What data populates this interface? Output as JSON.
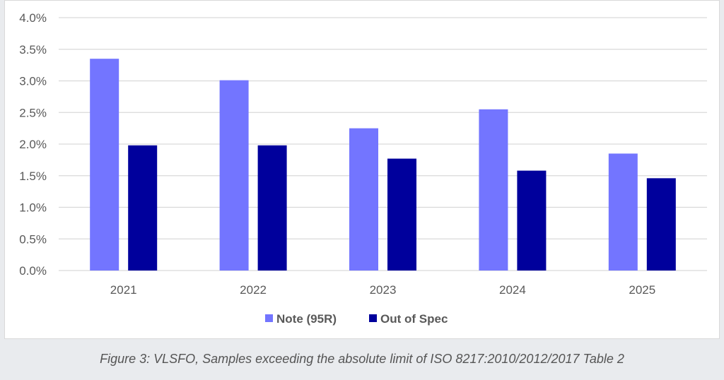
{
  "chart_data": {
    "type": "bar",
    "title": "",
    "xlabel": "",
    "ylabel": "",
    "categories": [
      "2021",
      "2022",
      "2023",
      "2024",
      "2025"
    ],
    "series": [
      {
        "name": "Note (95R)",
        "color": "#7375ff",
        "values": [
          3.35,
          3.01,
          2.25,
          2.55,
          1.85
        ]
      },
      {
        "name": "Out of Spec",
        "color": "#00009c",
        "values": [
          1.98,
          1.98,
          1.77,
          1.58,
          1.46
        ]
      }
    ],
    "ylim": [
      0,
      4.0
    ],
    "yticks": [
      "0.0%",
      "0.5%",
      "1.0%",
      "1.5%",
      "2.0%",
      "2.5%",
      "3.0%",
      "3.5%",
      "4.0%"
    ],
    "grid": true,
    "legend_position": "bottom"
  },
  "caption": "Figure 3: VLSFO, Samples exceeding the absolute limit of ISO 8217:2010/2012/2017 Table 2"
}
